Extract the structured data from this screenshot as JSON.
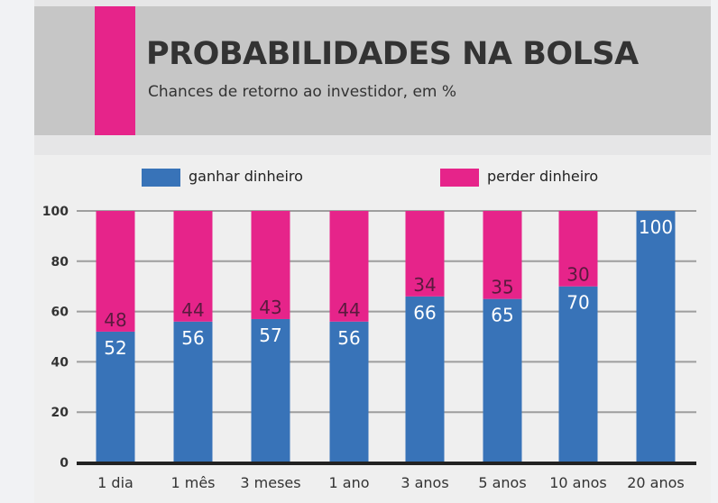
{
  "header": {
    "title": "PROBABILIDADES NA BOLSA",
    "subtitle": "Chances de retorno ao investidor, em %"
  },
  "colors": {
    "win": "#3873b8",
    "lose": "#e6248a",
    "header_bg": "#c6c6c6",
    "plot_bg": "#efefef",
    "grid": "#9e9e9e",
    "axis": "#222222"
  },
  "chart_data": {
    "type": "bar",
    "stacked": true,
    "title": "PROBABILIDADES NA BOLSA",
    "subtitle": "Chances de retorno ao investidor, em %",
    "xlabel": "",
    "ylabel": "",
    "ylim": [
      0,
      100
    ],
    "yticks": [
      0,
      20,
      40,
      60,
      80,
      100
    ],
    "grid": true,
    "legend_position": "top",
    "categories": [
      "1 dia",
      "1 mês",
      "3 meses",
      "1 ano",
      "3 anos",
      "5 anos",
      "10 anos",
      "20 anos"
    ],
    "series": [
      {
        "name": "ganhar dinheiro",
        "values": [
          52,
          56,
          57,
          56,
          66,
          65,
          70,
          100
        ]
      },
      {
        "name": "perder dinheiro",
        "values": [
          48,
          44,
          43,
          44,
          34,
          35,
          30,
          0
        ]
      }
    ]
  }
}
